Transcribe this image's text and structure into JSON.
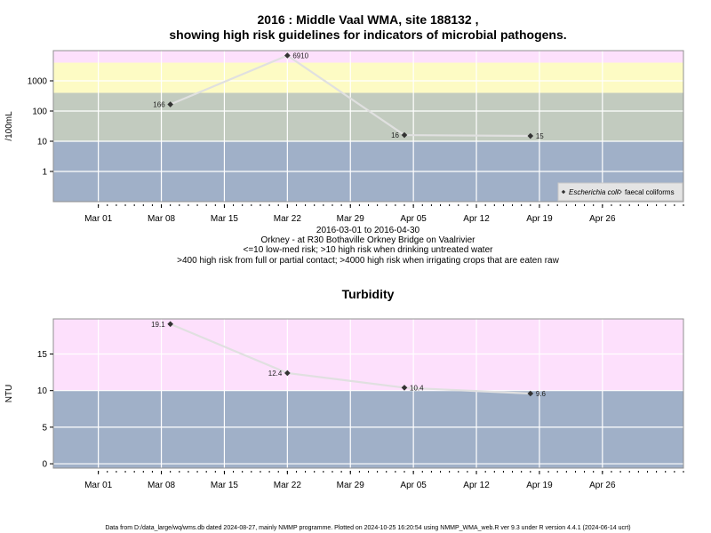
{
  "header": {
    "title_line1": "2016 : Middle Vaal WMA, site 188132 ,",
    "title_line2": "showing high risk guidelines for indicators of microbial pathogens."
  },
  "caption": {
    "line1": "2016-03-01 to 2016-04-30",
    "line2": "Orkney - at R30 Bothaville Orkney Bridge on Vaalrivier",
    "line3": "<=10 low-med risk; >10 high risk when drinking untreated water",
    "line4": ">400 high risk from full or partial contact; >4000 high risk when irrigating crops that are eaten raw"
  },
  "footer": "Data from D:/data_large/wq/wms.db dated 2024-08-27, mainly NMMP programme. Plotted on 2024-10-25 16:20:54 using NMMP_WMA_web.R ver 9.3 under R version 4.4.1 (2024-06-14 ucrt)",
  "colors": {
    "band_low": "#a0b0c8",
    "band_mid": "#c2cbbf",
    "band_high": "#fdfbc4",
    "band_top": "#fde0fc",
    "line": "#e0e0e0",
    "marker": "#333333"
  },
  "chart_data": [
    {
      "type": "line",
      "ylabel": "/100mL",
      "yscale": "log",
      "ylim": [
        0.1,
        10000
      ],
      "yticks": [
        {
          "v": 1,
          "label": "1"
        },
        {
          "v": 10,
          "label": "10"
        },
        {
          "v": 100,
          "label": "100"
        },
        {
          "v": 1000,
          "label": "1000"
        }
      ],
      "xlim": [
        "2016-02-25",
        "2016-05-05"
      ],
      "xticks": [
        {
          "d": "2016-03-01",
          "label": "Mar 01"
        },
        {
          "d": "2016-03-08",
          "label": "Mar 08"
        },
        {
          "d": "2016-03-15",
          "label": "Mar 15"
        },
        {
          "d": "2016-03-22",
          "label": "Mar 22"
        },
        {
          "d": "2016-03-29",
          "label": "Mar 29"
        },
        {
          "d": "2016-04-05",
          "label": "Apr 05"
        },
        {
          "d": "2016-04-12",
          "label": "Apr 12"
        },
        {
          "d": "2016-04-19",
          "label": "Apr 19"
        },
        {
          "d": "2016-04-26",
          "label": "Apr 26"
        }
      ],
      "bands": [
        {
          "from": 0.1,
          "to": 10,
          "color": "#a0b0c8"
        },
        {
          "from": 10,
          "to": 400,
          "color": "#c2cbbf"
        },
        {
          "from": 400,
          "to": 4000,
          "color": "#fdfbc4"
        },
        {
          "from": 4000,
          "to": 10000,
          "color": "#fde0fc"
        }
      ],
      "series": [
        {
          "name": "Escherichia coli",
          "points": [
            {
              "date": "2016-03-09",
              "value": 166,
              "label": "166",
              "side": "left"
            },
            {
              "date": "2016-03-22",
              "value": 6910,
              "label": "6910",
              "side": "right"
            },
            {
              "date": "2016-04-04",
              "value": 16,
              "label": "16",
              "side": "left"
            },
            {
              "date": "2016-04-18",
              "value": 15,
              "label": "15",
              "side": "right"
            }
          ]
        }
      ],
      "legend": {
        "position": "bottom-right",
        "entries": [
          {
            "label": "Escherichia coli",
            "italic": true,
            "symbol": "filled-diamond"
          },
          {
            "label": "faecal coliforms",
            "italic": false,
            "symbol": "open-diamond"
          }
        ]
      }
    },
    {
      "type": "line",
      "title": "Turbidity",
      "ylabel": "NTU",
      "yscale": "linear",
      "ylim": [
        -0.6,
        19.8
      ],
      "yticks": [
        {
          "v": 0,
          "label": "0"
        },
        {
          "v": 5,
          "label": "5"
        },
        {
          "v": 10,
          "label": "10"
        },
        {
          "v": 15,
          "label": "15"
        }
      ],
      "xlim": [
        "2016-02-25",
        "2016-05-05"
      ],
      "xticks": [
        {
          "d": "2016-03-01",
          "label": "Mar 01"
        },
        {
          "d": "2016-03-08",
          "label": "Mar 08"
        },
        {
          "d": "2016-03-15",
          "label": "Mar 15"
        },
        {
          "d": "2016-03-22",
          "label": "Mar 22"
        },
        {
          "d": "2016-03-29",
          "label": "Mar 29"
        },
        {
          "d": "2016-04-05",
          "label": "Apr 05"
        },
        {
          "d": "2016-04-12",
          "label": "Apr 12"
        },
        {
          "d": "2016-04-19",
          "label": "Apr 19"
        },
        {
          "d": "2016-04-26",
          "label": "Apr 26"
        }
      ],
      "bands": [
        {
          "from": -0.6,
          "to": 10,
          "color": "#a0b0c8"
        },
        {
          "from": 10,
          "to": 19.8,
          "color": "#fde0fc"
        }
      ],
      "series": [
        {
          "points": [
            {
              "date": "2016-03-09",
              "value": 19.1,
              "label": "19.1",
              "side": "left"
            },
            {
              "date": "2016-03-22",
              "value": 12.4,
              "label": "12.4",
              "side": "left"
            },
            {
              "date": "2016-04-04",
              "value": 10.4,
              "label": "10.4",
              "side": "right"
            },
            {
              "date": "2016-04-18",
              "value": 9.6,
              "label": "9.6",
              "side": "right"
            }
          ]
        }
      ]
    }
  ]
}
